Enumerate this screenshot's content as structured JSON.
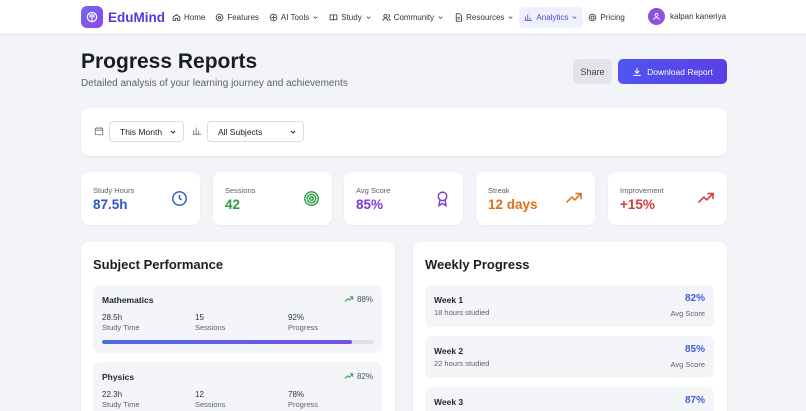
{
  "brand": {
    "name": "EduMind",
    "color": "#5a35d9"
  },
  "nav": {
    "items": [
      {
        "label": "Home",
        "icon": "home-icon"
      },
      {
        "label": "Features",
        "icon": "features-icon"
      },
      {
        "label": "AI Tools",
        "icon": "ai-icon",
        "dropdown": true
      },
      {
        "label": "Study",
        "icon": "book-icon",
        "dropdown": true
      },
      {
        "label": "Community",
        "icon": "users-icon",
        "dropdown": true
      },
      {
        "label": "Resources",
        "icon": "document-icon",
        "dropdown": true
      },
      {
        "label": "Analytics",
        "icon": "chart-icon",
        "dropdown": true,
        "active": true
      },
      {
        "label": "Pricing",
        "icon": "pricing-icon"
      }
    ],
    "user_name": "kalpan kaneriya"
  },
  "header": {
    "title": "Progress Reports",
    "subtitle": "Detailed analysis of your learning journey and achievements",
    "share_label": "Share",
    "download_label": "Download Report"
  },
  "filters": {
    "period": "This Month",
    "subject": "All Subjects"
  },
  "stats": [
    {
      "label": "Study Hours",
      "value": "87.5h",
      "color": "#2f56c9",
      "icon": "clock-icon"
    },
    {
      "label": "Sessions",
      "value": "42",
      "color": "#2f9a45",
      "icon": "target-icon"
    },
    {
      "label": "Avg Score",
      "value": "85%",
      "color": "#7a3ad6",
      "icon": "award-icon"
    },
    {
      "label": "Streak",
      "value": "12 days",
      "color": "#e0701a",
      "icon": "trending-up-icon"
    },
    {
      "label": "Improvement",
      "value": "+15%",
      "color": "#d63a3a",
      "icon": "trending-up-icon"
    }
  ],
  "subject_performance": {
    "title": "Subject Performance",
    "subjects": [
      {
        "name": "Mathematics",
        "trend": "88%",
        "hours": "28.5h",
        "hours_label": "Study Time",
        "sessions": "15",
        "sessions_label": "Sessions",
        "progress": "92%",
        "progress_label": "Progress",
        "progress_value": 0.92
      },
      {
        "name": "Physics",
        "trend": "82%",
        "hours": "22.3h",
        "hours_label": "Study Time",
        "sessions": "12",
        "sessions_label": "Sessions",
        "progress": "78%",
        "progress_label": "Progress",
        "progress_value": 0.78
      }
    ]
  },
  "weekly_progress": {
    "title": "Weekly Progress",
    "weeks": [
      {
        "name": "Week 1",
        "detail": "18 hours studied",
        "score": "82%",
        "score_label": "Avg Score"
      },
      {
        "name": "Week 2",
        "detail": "22 hours studied",
        "score": "85%",
        "score_label": "Avg Score"
      },
      {
        "name": "Week 3",
        "detail": "",
        "score": "87%",
        "score_label": ""
      }
    ]
  }
}
